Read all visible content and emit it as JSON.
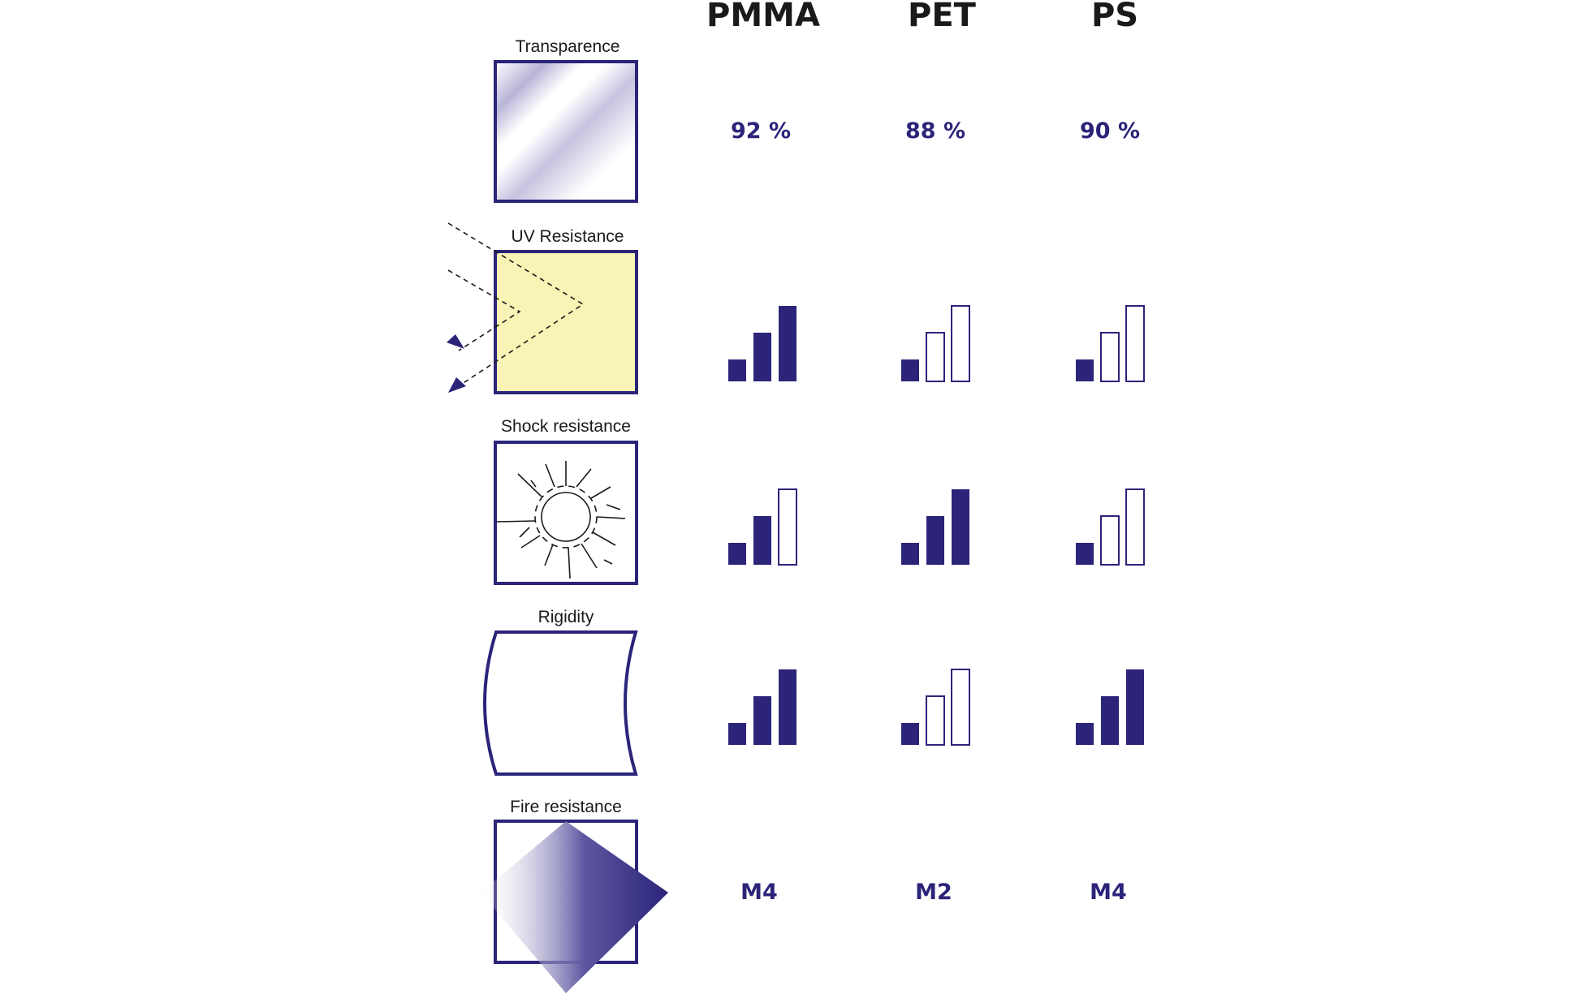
{
  "materials": [
    "PMMA",
    "PET",
    "PS"
  ],
  "colors": {
    "accent": "#2b2479",
    "uv_fill": "#f8f4b6",
    "text": "#1a1a1a"
  },
  "properties": [
    {
      "label": "Transparence",
      "icon": "transparency-icon",
      "type": "text",
      "values": [
        "92 %",
        "88 %",
        "90 %"
      ]
    },
    {
      "label": "UV Resistance",
      "icon": "uv-resistance-icon",
      "type": "bars",
      "levels": [
        3,
        1,
        1
      ]
    },
    {
      "label": "Shock resistance",
      "icon": "shock-resistance-icon",
      "type": "bars",
      "levels": [
        2,
        3,
        1
      ]
    },
    {
      "label": "Rigidity",
      "icon": "rigidity-icon",
      "type": "bars",
      "levels": [
        3,
        1,
        3
      ]
    },
    {
      "label": "Fire resistance",
      "icon": "fire-resistance-icon",
      "type": "text",
      "values": [
        "M4",
        "M2",
        "M4"
      ]
    }
  ],
  "bar_scale_max": 3
}
